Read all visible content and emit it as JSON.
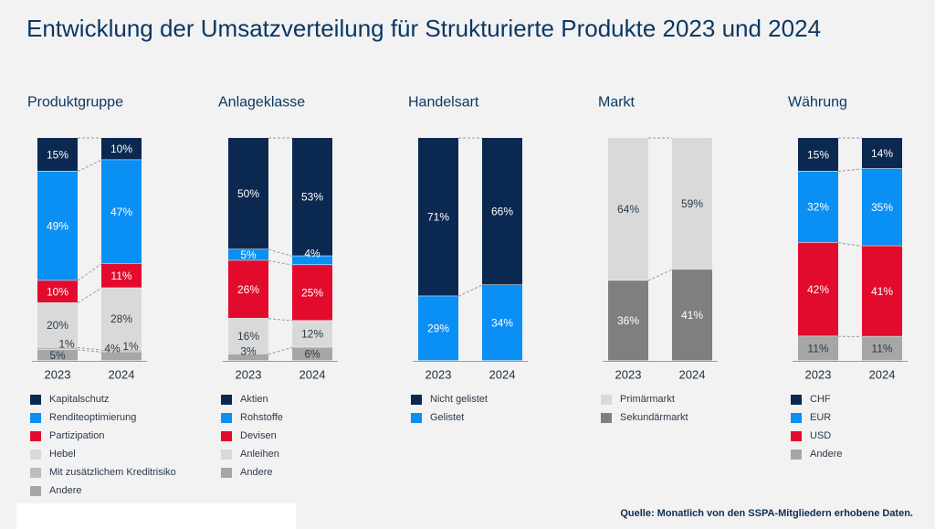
{
  "title": "Entwicklung der Umsatzverteilung für Strukturierte Produkte 2023 und 2024",
  "source": "Quelle: Monatlich von den SSPA-Mitgliedern erhobene Daten.",
  "chart_data": [
    {
      "type": "bar",
      "stacked": true,
      "normalized": true,
      "title": "Produktgruppe",
      "categories": [
        "2023",
        "2024"
      ],
      "series": [
        {
          "name": "Kapitalschutz",
          "values": [
            15,
            10
          ],
          "color": "#0b2850"
        },
        {
          "name": "Renditeoptimierung",
          "values": [
            49,
            47
          ],
          "color": "#0a8ff5"
        },
        {
          "name": "Partizipation",
          "values": [
            10,
            11
          ],
          "color": "#e30b2c"
        },
        {
          "name": "Hebel",
          "values": [
            20,
            28
          ],
          "color": "#d9d9d9"
        },
        {
          "name": "Mit zusätzlichem Kreditrisiko",
          "values": [
            1,
            1
          ],
          "color": "#bdbdbd"
        },
        {
          "name": "Andere",
          "values": [
            5,
            4
          ],
          "color": "#a6a6a6"
        }
      ],
      "labels": [
        [
          "15%",
          "10%"
        ],
        [
          "49%",
          "47%"
        ],
        [
          "10%",
          "11%"
        ],
        [
          "20%",
          "28%"
        ],
        [
          "1%",
          "1%"
        ],
        [
          "5%",
          "4%"
        ]
      ]
    },
    {
      "type": "bar",
      "stacked": true,
      "normalized": true,
      "title": "Anlageklasse",
      "categories": [
        "2023",
        "2024"
      ],
      "series": [
        {
          "name": "Aktien",
          "values": [
            50,
            53
          ],
          "color": "#0b2850"
        },
        {
          "name": "Rohstoffe",
          "values": [
            5,
            4
          ],
          "color": "#0a8ff5"
        },
        {
          "name": "Devisen",
          "values": [
            26,
            25
          ],
          "color": "#e30b2c"
        },
        {
          "name": "Anleihen",
          "values": [
            16,
            12
          ],
          "color": "#d9d9d9"
        },
        {
          "name": "Andere",
          "values": [
            3,
            6
          ],
          "color": "#a6a6a6"
        }
      ],
      "labels": [
        [
          "50%",
          "53%"
        ],
        [
          "5%",
          "4%"
        ],
        [
          "26%",
          "25%"
        ],
        [
          "16%",
          "12%"
        ],
        [
          "3%",
          "6%"
        ]
      ]
    },
    {
      "type": "bar",
      "stacked": true,
      "normalized": true,
      "title": "Handelsart",
      "categories": [
        "2023",
        "2024"
      ],
      "series": [
        {
          "name": "Nicht gelistet",
          "values": [
            71,
            66
          ],
          "color": "#0b2850"
        },
        {
          "name": "Gelistet",
          "values": [
            29,
            34
          ],
          "color": "#0a8ff5"
        }
      ],
      "labels": [
        [
          "71%",
          "66%"
        ],
        [
          "29%",
          "34%"
        ]
      ]
    },
    {
      "type": "bar",
      "stacked": true,
      "normalized": true,
      "title": "Markt",
      "categories": [
        "2023",
        "2024"
      ],
      "series": [
        {
          "name": "Primärmarkt",
          "values": [
            64,
            59
          ],
          "color": "#d9d9d9"
        },
        {
          "name": "Sekundärmarkt",
          "values": [
            36,
            41
          ],
          "color": "#7f7f7f"
        }
      ],
      "labels": [
        [
          "64%",
          "59%"
        ],
        [
          "36%",
          "41%"
        ]
      ]
    },
    {
      "type": "bar",
      "stacked": true,
      "normalized": true,
      "title": "Währung",
      "categories": [
        "2023",
        "2024"
      ],
      "series": [
        {
          "name": "CHF",
          "values": [
            15,
            14
          ],
          "color": "#0b2850"
        },
        {
          "name": "EUR",
          "values": [
            32,
            35
          ],
          "color": "#0a8ff5"
        },
        {
          "name": "USD",
          "values": [
            42,
            41
          ],
          "color": "#e30b2c"
        },
        {
          "name": "Andere",
          "values": [
            11,
            11
          ],
          "color": "#a6a6a6"
        }
      ],
      "labels": [
        [
          "15%",
          "14%"
        ],
        [
          "32%",
          "35%"
        ],
        [
          "42%",
          "41%"
        ],
        [
          "11%",
          "11%"
        ]
      ]
    }
  ]
}
